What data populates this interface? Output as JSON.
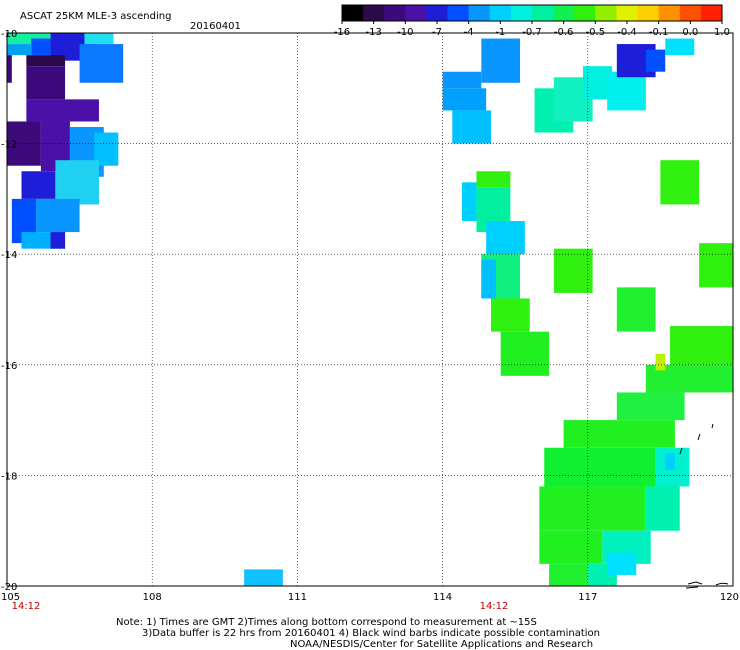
{
  "title": "ASCAT 25KM MLE-3 ascending",
  "date": "20160401",
  "colorbar": {
    "ticks": [
      "-16",
      "-13",
      "-10",
      "-7",
      "-4",
      "-1",
      "-0.7",
      "-0.6",
      "-0.5",
      "-0.4",
      "-0.1",
      "0.0",
      "1.0"
    ],
    "colors": [
      "#000000",
      "#2a0a48",
      "#3c0a7a",
      "#4a10a8",
      "#1e1ed8",
      "#0050ff",
      "#0a96ff",
      "#00d0ff",
      "#00f0e0",
      "#00f0a0",
      "#10f050",
      "#30f010",
      "#90f000",
      "#e0f000",
      "#ffd000",
      "#ff9000",
      "#ff5000",
      "#ff2000"
    ]
  },
  "times": {
    "left": "14:12",
    "middle": "14:12"
  },
  "notes": {
    "line1": "Note: 1) Times are GMT 2)Times along bottom correspond to measurement at ~15S",
    "line2": "3)Data buffer is 22 hrs from 20160401 4) Black wind barbs indicate possible contamination",
    "line3": "NOAA/NESDIS/Center for Satellite Applications and Research"
  },
  "chart_data": {
    "type": "heatmap",
    "title": "ASCAT 25KM MLE-3 ascending",
    "subtitle": "20160401",
    "xlim": [
      105,
      120
    ],
    "ylim": [
      -20,
      -10
    ],
    "x_ticks": [
      "105",
      "108",
      "111",
      "114",
      "117",
      "120"
    ],
    "y_ticks": [
      "-10",
      "-12",
      "-14",
      "-16",
      "-18",
      "-20"
    ],
    "x_tick_values": [
      105,
      108,
      111,
      114,
      117,
      120
    ],
    "y_tick_values": [
      -10,
      -12,
      -14,
      -16,
      -18,
      -20
    ],
    "grid": true,
    "cells": [
      {
        "x0": 105.0,
        "x1": 106.2,
        "y0": -10.2,
        "y1": -10.0,
        "c": "#10f0a0"
      },
      {
        "x0": 105.0,
        "x1": 105.5,
        "y0": -10.4,
        "y1": -10.2,
        "c": "#00a0f0"
      },
      {
        "x0": 105.5,
        "x1": 105.9,
        "y0": -10.4,
        "y1": -10.1,
        "c": "#0050ff"
      },
      {
        "x0": 105.9,
        "x1": 106.8,
        "y0": -10.5,
        "y1": -10.0,
        "c": "#1e1ed8"
      },
      {
        "x0": 106.6,
        "x1": 107.2,
        "y0": -10.2,
        "y1": -10.0,
        "c": "#20e0f0"
      },
      {
        "x0": 105.4,
        "x1": 106.2,
        "y0": -10.6,
        "y1": -10.4,
        "c": "#2a0a48"
      },
      {
        "x0": 105.0,
        "x1": 105.1,
        "y0": -10.9,
        "y1": -10.4,
        "c": "#3c0a7a"
      },
      {
        "x0": 106.5,
        "x1": 107.4,
        "y0": -10.9,
        "y1": -10.2,
        "c": "#0a78ff"
      },
      {
        "x0": 105.4,
        "x1": 106.2,
        "y0": -11.2,
        "y1": -10.6,
        "c": "#3c0a7a"
      },
      {
        "x0": 105.4,
        "x1": 106.9,
        "y0": -11.6,
        "y1": -11.2,
        "c": "#4a10a8"
      },
      {
        "x0": 105.0,
        "x1": 105.7,
        "y0": -12.4,
        "y1": -11.6,
        "c": "#3c0a7a"
      },
      {
        "x0": 105.7,
        "x1": 106.3,
        "y0": -12.5,
        "y1": -11.6,
        "c": "#4a10a8"
      },
      {
        "x0": 106.3,
        "x1": 107.0,
        "y0": -12.6,
        "y1": -11.7,
        "c": "#0a96ff"
      },
      {
        "x0": 106.8,
        "x1": 107.3,
        "y0": -12.4,
        "y1": -11.8,
        "c": "#00c0ff"
      },
      {
        "x0": 105.3,
        "x1": 106.0,
        "y0": -13.0,
        "y1": -12.5,
        "c": "#1e1ed8"
      },
      {
        "x0": 106.0,
        "x1": 106.9,
        "y0": -13.1,
        "y1": -12.3,
        "c": "#20d0f0"
      },
      {
        "x0": 105.1,
        "x1": 105.6,
        "y0": -13.8,
        "y1": -13.0,
        "c": "#0050ff"
      },
      {
        "x0": 105.6,
        "x1": 106.5,
        "y0": -13.6,
        "y1": -13.0,
        "c": "#0a96ff"
      },
      {
        "x0": 105.3,
        "x1": 106.2,
        "y0": -13.9,
        "y1": -13.6,
        "c": "#00b0ff"
      },
      {
        "x0": 105.9,
        "x1": 106.2,
        "y0": -13.9,
        "y1": -13.6,
        "c": "#1e1ed8"
      },
      {
        "x0": 114.0,
        "x1": 114.8,
        "y0": -11.0,
        "y1": -10.7,
        "c": "#0a96ff"
      },
      {
        "x0": 114.0,
        "x1": 114.9,
        "y0": -11.4,
        "y1": -11.0,
        "c": "#00a0ff"
      },
      {
        "x0": 114.2,
        "x1": 115.0,
        "y0": -12.0,
        "y1": -11.4,
        "c": "#00c0ff"
      },
      {
        "x0": 114.8,
        "x1": 115.6,
        "y0": -10.9,
        "y1": -10.1,
        "c": "#0a96ff"
      },
      {
        "x0": 115.9,
        "x1": 116.7,
        "y0": -11.8,
        "y1": -11.0,
        "c": "#00f0b0"
      },
      {
        "x0": 116.3,
        "x1": 117.1,
        "y0": -11.6,
        "y1": -10.8,
        "c": "#10f0c0"
      },
      {
        "x0": 116.9,
        "x1": 117.5,
        "y0": -11.2,
        "y1": -10.6,
        "c": "#00f0e0"
      },
      {
        "x0": 117.4,
        "x1": 118.2,
        "y0": -11.4,
        "y1": -10.7,
        "c": "#00f0f0"
      },
      {
        "x0": 117.6,
        "x1": 118.4,
        "y0": -10.8,
        "y1": -10.2,
        "c": "#1e1ed8"
      },
      {
        "x0": 118.2,
        "x1": 118.6,
        "y0": -10.7,
        "y1": -10.3,
        "c": "#0050ff"
      },
      {
        "x0": 118.6,
        "x1": 119.2,
        "y0": -10.4,
        "y1": -10.1,
        "c": "#00e0ff"
      },
      {
        "x0": 114.4,
        "x1": 114.7,
        "y0": -13.4,
        "y1": -12.7,
        "c": "#00d0ff"
      },
      {
        "x0": 114.7,
        "x1": 115.4,
        "y0": -12.8,
        "y1": -12.5,
        "c": "#30f010"
      },
      {
        "x0": 114.7,
        "x1": 115.4,
        "y0": -13.6,
        "y1": -12.8,
        "c": "#00f0a0"
      },
      {
        "x0": 114.9,
        "x1": 115.7,
        "y0": -14.0,
        "y1": -13.4,
        "c": "#00d0ff"
      },
      {
        "x0": 114.8,
        "x1": 115.6,
        "y0": -14.8,
        "y1": -14.0,
        "c": "#10f080"
      },
      {
        "x0": 114.8,
        "x1": 115.1,
        "y0": -14.8,
        "y1": -14.1,
        "c": "#00c0ff"
      },
      {
        "x0": 115.0,
        "x1": 115.8,
        "y0": -15.4,
        "y1": -14.8,
        "c": "#30f010"
      },
      {
        "x0": 115.2,
        "x1": 116.2,
        "y0": -16.2,
        "y1": -15.4,
        "c": "#20f020"
      },
      {
        "x0": 116.3,
        "x1": 117.1,
        "y0": -14.7,
        "y1": -13.9,
        "c": "#30f010"
      },
      {
        "x0": 117.6,
        "x1": 118.4,
        "y0": -15.4,
        "y1": -14.6,
        "c": "#20f030"
      },
      {
        "x0": 118.5,
        "x1": 119.3,
        "y0": -13.1,
        "y1": -12.3,
        "c": "#30f010"
      },
      {
        "x0": 119.3,
        "x1": 120.0,
        "y0": -14.6,
        "y1": -13.8,
        "c": "#30f010"
      },
      {
        "x0": 118.7,
        "x1": 120.0,
        "y0": -16.0,
        "y1": -15.3,
        "c": "#30f010"
      },
      {
        "x0": 118.2,
        "x1": 120.0,
        "y0": -16.5,
        "y1": -16.0,
        "c": "#20f030"
      },
      {
        "x0": 118.4,
        "x1": 118.6,
        "y0": -16.1,
        "y1": -15.8,
        "c": "#c0f000"
      },
      {
        "x0": 117.6,
        "x1": 119.0,
        "y0": -17.0,
        "y1": -16.5,
        "c": "#20f040"
      },
      {
        "x0": 116.5,
        "x1": 118.8,
        "y0": -17.5,
        "y1": -17.0,
        "c": "#20f020"
      },
      {
        "x0": 116.1,
        "x1": 118.4,
        "y0": -18.2,
        "y1": -17.5,
        "c": "#10f030"
      },
      {
        "x0": 118.4,
        "x1": 119.1,
        "y0": -18.2,
        "y1": -17.5,
        "c": "#00f0d0"
      },
      {
        "x0": 118.6,
        "x1": 118.8,
        "y0": -17.9,
        "y1": -17.6,
        "c": "#00d0ff"
      },
      {
        "x0": 116.0,
        "x1": 118.2,
        "y0": -19.0,
        "y1": -18.2,
        "c": "#20f020"
      },
      {
        "x0": 118.2,
        "x1": 118.9,
        "y0": -19.0,
        "y1": -18.2,
        "c": "#00f0b0"
      },
      {
        "x0": 116.0,
        "x1": 117.3,
        "y0": -19.6,
        "y1": -19.0,
        "c": "#20f020"
      },
      {
        "x0": 117.3,
        "x1": 118.3,
        "y0": -19.6,
        "y1": -19.0,
        "c": "#00f0c0"
      },
      {
        "x0": 116.2,
        "x1": 117.0,
        "y0": -20.0,
        "y1": -19.6,
        "c": "#20f030"
      },
      {
        "x0": 117.0,
        "x1": 117.6,
        "y0": -20.0,
        "y1": -19.6,
        "c": "#00f0b0"
      },
      {
        "x0": 117.4,
        "x1": 118.0,
        "y0": -19.8,
        "y1": -19.4,
        "c": "#00e0ff"
      },
      {
        "x0": 109.9,
        "x1": 110.7,
        "y0": -20.0,
        "y1": -19.7,
        "c": "#10c0ff"
      }
    ]
  }
}
